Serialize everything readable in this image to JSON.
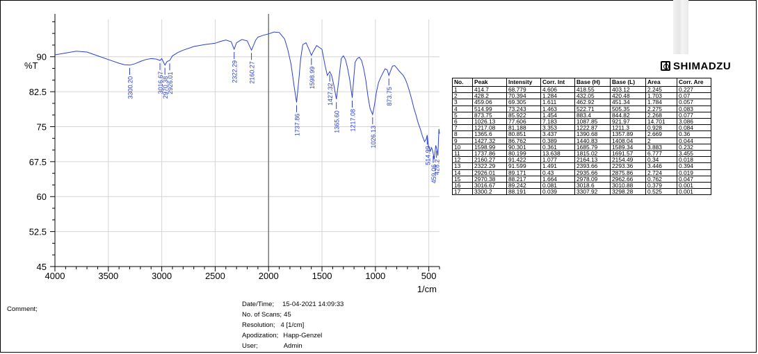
{
  "chart_data": {
    "type": "line",
    "title": "",
    "xlabel": "1/cm",
    "ylabel": "%T",
    "xlim": [
      4000,
      400
    ],
    "ylim": [
      45,
      98
    ],
    "x_ticks": [
      4000,
      3500,
      3000,
      2500,
      2000,
      1500,
      1000,
      500
    ],
    "x_tick_labels": [
      "4000",
      "3500",
      "3000",
      "2500",
      "2000",
      "1500",
      "1000",
      "500"
    ],
    "y_ticks": [
      45,
      52.5,
      60,
      67.5,
      75,
      82.5,
      90
    ],
    "y_tick_labels": [
      "45",
      "52.5",
      "60",
      "67.5",
      "75",
      "82.5",
      "90"
    ],
    "grid": true,
    "line_color": "#2b3fd6",
    "series": [
      {
        "x": [
          4000,
          3900,
          3800,
          3700,
          3600,
          3500,
          3400,
          3350,
          3300,
          3250,
          3200,
          3150,
          3100,
          3050,
          3016.67,
          3000,
          2970.38,
          2950,
          2926.01,
          2900,
          2850,
          2800,
          2700,
          2600,
          2500,
          2450,
          2400,
          2350,
          2322.29,
          2300,
          2250,
          2200,
          2160.27,
          2120,
          2100,
          2050,
          2000,
          1950,
          1900,
          1850,
          1820,
          1790,
          1760,
          1737.86,
          1715,
          1700,
          1680,
          1650,
          1620,
          1598.99,
          1580,
          1550,
          1500,
          1470,
          1450,
          1427.32,
          1410,
          1390,
          1365.6,
          1345,
          1320,
          1300,
          1280,
          1260,
          1240,
          1225,
          1217.08,
          1205,
          1190,
          1170,
          1150,
          1130,
          1110,
          1090,
          1070,
          1050,
          1026.13,
          1010,
          990,
          970,
          950,
          930,
          910,
          890,
          873.75,
          860,
          840,
          820,
          800,
          780,
          760,
          740,
          720,
          700,
          680,
          660,
          640,
          620,
          600,
          580,
          560,
          540,
          525,
          514.99,
          505,
          495,
          485,
          475,
          465,
          459.06,
          450,
          440,
          435,
          428.2,
          420,
          414.7,
          410,
          405,
          400
        ],
        "y": [
          90.4,
          90.8,
          91.2,
          91.0,
          90.2,
          89.4,
          88.6,
          88.3,
          88.2,
          88.5,
          89.0,
          89.4,
          89.6,
          89.5,
          89.2,
          89.6,
          88.2,
          89.0,
          89.2,
          90.2,
          90.9,
          91.4,
          92.2,
          92.6,
          92.9,
          93.3,
          93.6,
          93.2,
          91.6,
          93.0,
          93.7,
          93.4,
          91.4,
          93.6,
          94.2,
          94.6,
          94.9,
          95.3,
          95.2,
          93.8,
          91.5,
          88.4,
          83.5,
          80.2,
          85.5,
          89.5,
          92.6,
          93.0,
          91.5,
          90.3,
          91.2,
          92.4,
          91.6,
          88.0,
          86.0,
          86.8,
          86.0,
          84.0,
          80.9,
          84.5,
          89.6,
          90.2,
          89.4,
          87.5,
          85.0,
          82.5,
          81.2,
          84.6,
          88.8,
          89.6,
          89.9,
          89.2,
          87.5,
          85.0,
          81.5,
          78.9,
          77.6,
          79.5,
          82.5,
          84.5,
          85.6,
          86.5,
          87.4,
          87.2,
          86.0,
          86.8,
          88.0,
          88.1,
          87.6,
          87.0,
          86.5,
          86.0,
          85.2,
          84.0,
          82.5,
          80.8,
          79.0,
          77.5,
          75.8,
          74.5,
          73.0,
          71.8,
          72.3,
          73.2,
          71.0,
          70.3,
          69.8,
          70.5,
          69.9,
          69.3,
          68.0,
          70.0,
          71.0,
          70.4,
          69.6,
          68.8,
          72.0,
          74.5,
          73.5
        ]
      }
    ],
    "peak_annotations": [
      {
        "x": 3300.2,
        "y": 88.191,
        "label": "3300.20"
      },
      {
        "x": 3016.67,
        "y": 89.242,
        "label": "3016.67"
      },
      {
        "x": 2970.38,
        "y": 88.217,
        "label": "2970.38"
      },
      {
        "x": 2926.01,
        "y": 89.171,
        "label": "2926.01"
      },
      {
        "x": 2322.29,
        "y": 91.599,
        "label": "2322.29"
      },
      {
        "x": 2160.27,
        "y": 91.422,
        "label": "2160.27"
      },
      {
        "x": 1737.86,
        "y": 80.199,
        "label": "1737.86"
      },
      {
        "x": 1598.99,
        "y": 90.301,
        "label": "1598.99"
      },
      {
        "x": 1427.32,
        "y": 86.762,
        "label": "1427.32"
      },
      {
        "x": 1365.6,
        "y": 80.851,
        "label": "1365.60"
      },
      {
        "x": 1217.08,
        "y": 81.188,
        "label": "1217.08"
      },
      {
        "x": 1026.13,
        "y": 77.606,
        "label": "1026.13"
      },
      {
        "x": 873.75,
        "y": 85.922,
        "label": "873.75"
      },
      {
        "x": 514.99,
        "y": 73.243,
        "label": "514.99"
      },
      {
        "x": 459.06,
        "y": 69.305,
        "label": "459.06"
      },
      {
        "x": 428.2,
        "y": 70.394,
        "label": "428.2"
      }
    ]
  },
  "peak_table": {
    "headers": [
      "No.",
      "Peak",
      "Intensity",
      "Corr. Int",
      "Base (H)",
      "Base (L)",
      "Area",
      "Corr. Are"
    ],
    "rows": [
      [
        "1",
        "414.7",
        "68.779",
        "4.606",
        "418.55",
        "403.12",
        "2.245",
        "0.227"
      ],
      [
        "2",
        "428.2",
        "70.394",
        "1.284",
        "432.05",
        "420.48",
        "1.703",
        "0.07"
      ],
      [
        "3",
        "459.06",
        "69.305",
        "1.611",
        "462.92",
        "451.34",
        "1.784",
        "0.057"
      ],
      [
        "4",
        "514.99",
        "73.243",
        "1.463",
        "522.71",
        "505.35",
        "2.275",
        "0.083"
      ],
      [
        "5",
        "873.75",
        "85.922",
        "1.454",
        "883.4",
        "844.82",
        "2.268",
        "0.077"
      ],
      [
        "6",
        "1026.13",
        "77.606",
        "7.183",
        "1087.85",
        "921.97",
        "14.701",
        "3.086"
      ],
      [
        "7",
        "1217.08",
        "81.188",
        "3.353",
        "1222.87",
        "1211.3",
        "0.928",
        "0.084"
      ],
      [
        "8",
        "1365.6",
        "80.851",
        "3.437",
        "1390.68",
        "1357.89",
        "2.669",
        "0.36"
      ],
      [
        "9",
        "1427.32",
        "86.762",
        "0.389",
        "1440.83",
        "1408.04",
        "2",
        "0.044"
      ],
      [
        "10",
        "1598.99",
        "90.301",
        "0.361",
        "1685.79",
        "1589.34",
        "3.883",
        "0.232"
      ],
      [
        "11",
        "1737.86",
        "80.199",
        "13.638",
        "1815.02",
        "1691.57",
        "6.777",
        "3.455"
      ],
      [
        "12",
        "2160.27",
        "91.422",
        "1.077",
        "2164.13",
        "2154.49",
        "0.34",
        "0.018"
      ],
      [
        "13",
        "2322.29",
        "91.599",
        "1.491",
        "2393.66",
        "2293.36",
        "3.446",
        "0.394"
      ],
      [
        "14",
        "2926.01",
        "89.171",
        "0.43",
        "2935.66",
        "2875.86",
        "2.724",
        "0.019"
      ],
      [
        "15",
        "2970.38",
        "88.217",
        "1.664",
        "2978.09",
        "2962.66",
        "0.762",
        "0.047"
      ],
      [
        "16",
        "3016.67",
        "89.242",
        "0.081",
        "3018.6",
        "3010.88",
        "0.379",
        "0.001"
      ],
      [
        "17",
        "3300.2",
        "88.191",
        "0.039",
        "3307.92",
        "3298.28",
        "0.525",
        "0.001"
      ]
    ]
  },
  "logo": {
    "text": "SHIMADZU"
  },
  "comment": {
    "label": "Comment;"
  },
  "meta": {
    "date_label": "Date/Time;",
    "date_value": "15-04-2021 14:09:33",
    "scans_label": "No. of Scans;",
    "scans_value": "45",
    "resolution_label": "Resolution;",
    "resolution_value": "4 [1/cm]",
    "apodization_label": "Apodization;",
    "apodization_value": "Happ-Genzel",
    "user_label": "User;",
    "user_value": "Admin"
  }
}
